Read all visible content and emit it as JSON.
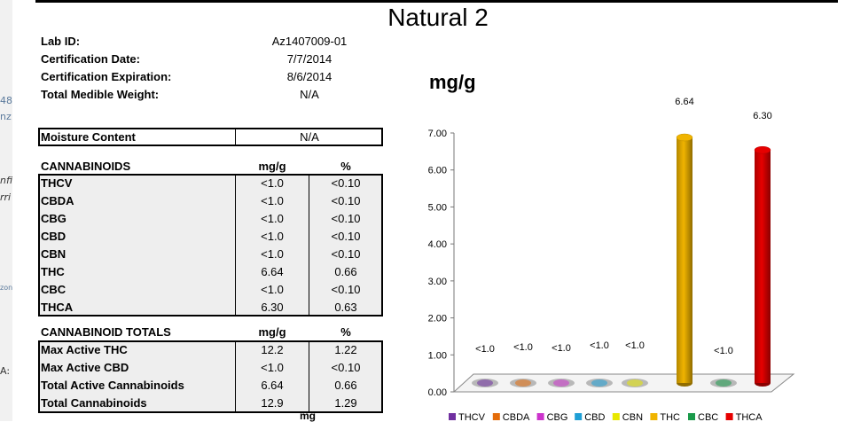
{
  "page": {
    "title": "Natural 2",
    "side_fragments": [
      "48",
      "nz",
      "nfi",
      "rri",
      "zon",
      "A:"
    ]
  },
  "lab_info": [
    {
      "label": "Lab ID:",
      "value": "Az1407009-01"
    },
    {
      "label": "Certification Date:",
      "value": "7/7/2014"
    },
    {
      "label": "Certification Expiration:",
      "value": "8/6/2014"
    },
    {
      "label": "Total Medible Weight:",
      "value": "N/A"
    }
  ],
  "moisture": {
    "label": "Moisture Content",
    "value": "N/A"
  },
  "cannabinoids": {
    "header": {
      "label": "CANNABINOIDS",
      "col1": "mg/g",
      "col2": "%"
    },
    "rows": [
      {
        "name": "THCV",
        "mg": "<1.0",
        "pct": "<0.10"
      },
      {
        "name": "CBDA",
        "mg": "<1.0",
        "pct": "<0.10"
      },
      {
        "name": "CBG",
        "mg": "<1.0",
        "pct": "<0.10"
      },
      {
        "name": "CBD",
        "mg": "<1.0",
        "pct": "<0.10"
      },
      {
        "name": "CBN",
        "mg": "<1.0",
        "pct": "<0.10"
      },
      {
        "name": "THC",
        "mg": "6.64",
        "pct": "0.66"
      },
      {
        "name": "CBC",
        "mg": "<1.0",
        "pct": "<0.10"
      },
      {
        "name": "THCA",
        "mg": "6.30",
        "pct": "0.63"
      }
    ]
  },
  "totals": {
    "header": {
      "label": "CANNABINOID TOTALS",
      "col1": "mg/g",
      "col2": "%"
    },
    "rows": [
      {
        "name": "Max Active THC",
        "mg": "12.2",
        "pct": "1.22"
      },
      {
        "name": "Max Active CBD",
        "mg": "<1.0",
        "pct": "<0.10"
      },
      {
        "name": "Total Active Cannabinoids",
        "mg": "6.64",
        "pct": "0.66"
      },
      {
        "name": "Total Cannabinoids",
        "mg": "12.9",
        "pct": "1.29"
      }
    ],
    "footer_fragment": "mg"
  },
  "chart_data": {
    "type": "bar",
    "title": "mg/g",
    "categories": [
      "THCV",
      "CBDA",
      "CBG",
      "CBD",
      "CBN",
      "THC",
      "CBC",
      "THCA"
    ],
    "values": [
      0,
      0,
      0,
      0,
      0,
      6.64,
      0,
      6.3
    ],
    "labels": [
      "<1.0",
      "<1.0",
      "<1.0",
      "<1.0",
      "<1.0",
      "6.64",
      "<1.0",
      "6.30"
    ],
    "colors": [
      "#7030a0",
      "#e46c0a",
      "#cc33cc",
      "#1f9fd5",
      "#e8e800",
      "#f0b400",
      "#1a9a4a",
      "#e60000"
    ],
    "ylim": [
      0,
      7
    ],
    "yticks": [
      "0.00",
      "1.00",
      "2.00",
      "3.00",
      "4.00",
      "5.00",
      "6.00",
      "7.00"
    ],
    "legend_position": "bottom",
    "legend_visible": [
      "THCV",
      "CBDA",
      "CBG",
      "CBD",
      "CBN",
      "THC",
      "CBC",
      "THCA"
    ]
  }
}
